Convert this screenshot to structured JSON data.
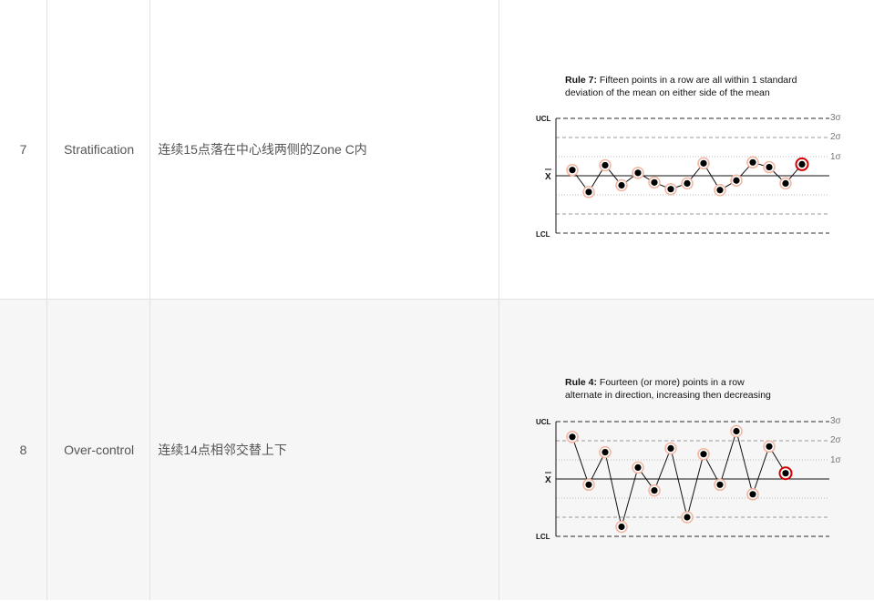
{
  "rows": [
    {
      "num": "7",
      "name": "Stratification",
      "desc": "连续15点落在中心线两侧的Zone C内",
      "chart": {
        "title_bold": "Rule 7:",
        "title_line1": " Fifteen points in a row are all within 1 standard",
        "title_line2": "deviation of the mean on either side of the mean",
        "labels": {
          "ucl": "UCL",
          "lcl": "LCL",
          "xbar": "X",
          "s3": "3σ",
          "s2": "2σ",
          "s1": "1σ"
        }
      }
    },
    {
      "num": "8",
      "name": "Over-control",
      "desc": "连续14点相邻交替上下",
      "chart": {
        "title_bold": "Rule 4:",
        "title_line1": " Fourteen (or more) points in a row",
        "title_line2": "alternate in direction, increasing then decreasing",
        "labels": {
          "ucl": "UCL",
          "lcl": "LCL",
          "xbar": "X",
          "s3": "3σ",
          "s2": "2σ",
          "s1": "1σ"
        }
      }
    }
  ],
  "chart_data": [
    {
      "type": "line",
      "title": "Rule 7: Fifteen points in a row are all within 1 standard deviation of the mean on either side of the mean",
      "ylim": [
        -3,
        3
      ],
      "y": [
        0.3,
        -0.85,
        0.55,
        -0.5,
        0.15,
        -0.35,
        -0.7,
        -0.4,
        0.65,
        -0.75,
        -0.25,
        0.7,
        0.45,
        -0.4,
        0.6
      ],
      "highlight_index": 14
    },
    {
      "type": "line",
      "title": "Rule 4: Fourteen (or more) points in a row alternate in direction, increasing then decreasing",
      "ylim": [
        -3,
        3
      ],
      "y": [
        2.2,
        -0.3,
        1.4,
        -2.5,
        0.6,
        -0.6,
        1.6,
        -2.0,
        1.3,
        -0.3,
        2.5,
        -0.8,
        1.7,
        0.3
      ],
      "highlight_index": 13
    }
  ]
}
